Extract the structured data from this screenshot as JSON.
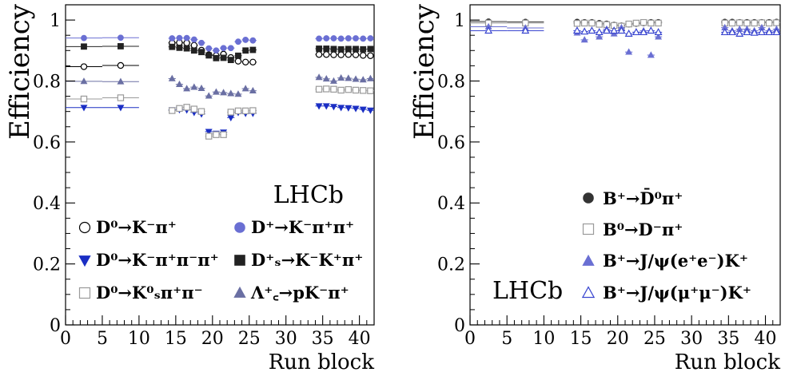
{
  "chart_data": [
    {
      "type": "scatter",
      "panel": "left",
      "xlabel": "Run block",
      "ylabel": "Efficiency",
      "xlim": [
        0,
        42
      ],
      "ylim": [
        0,
        1.05
      ],
      "xticks": [
        0,
        5,
        10,
        15,
        20,
        25,
        30,
        35,
        40
      ],
      "yticks": [
        0,
        0.2,
        0.4,
        0.6,
        0.8,
        1
      ],
      "ytick_labels": [
        "0",
        "0.2",
        "0.4",
        "0.6",
        "0.8",
        "1"
      ],
      "watermark": "LHCb",
      "legend_position": "bottom",
      "series": [
        {
          "name": "D⁰→K⁻π⁺",
          "marker": "open-circle",
          "color": "#000000",
          "x": [
            2.5,
            7.5,
            14.5,
            15.5,
            16.5,
            17.5,
            18.5,
            19.5,
            20.5,
            21.5,
            22.5,
            23.5,
            24.5,
            25.5,
            34.5,
            35.5,
            36.5,
            37.5,
            38.5,
            39.5,
            40.5,
            41.5
          ],
          "y": [
            0.847,
            0.851,
            0.925,
            0.926,
            0.925,
            0.917,
            0.901,
            0.886,
            0.883,
            0.888,
            0.877,
            0.865,
            0.862,
            0.862,
            0.887,
            0.887,
            0.886,
            0.886,
            0.887,
            0.886,
            0.884,
            0.883
          ]
        },
        {
          "name": "D⁺→K⁻π⁺π⁺",
          "marker": "filled-circle",
          "color": "#6a6fd3",
          "x": [
            2.5,
            7.5,
            14.5,
            15.5,
            16.5,
            17.5,
            18.5,
            19.5,
            20.5,
            21.5,
            22.5,
            23.5,
            24.5,
            25.5,
            34.5,
            35.5,
            36.5,
            37.5,
            38.5,
            39.5,
            40.5,
            41.5
          ],
          "y": [
            0.941,
            0.942,
            0.94,
            0.941,
            0.941,
            0.936,
            0.925,
            0.907,
            0.9,
            0.908,
            0.908,
            0.929,
            0.935,
            0.933,
            0.939,
            0.94,
            0.94,
            0.939,
            0.94,
            0.94,
            0.939,
            0.94
          ]
        },
        {
          "name": "D⁰→K⁻π⁺π⁻π⁺",
          "marker": "filled-triangle-down",
          "color": "#1a2ec4",
          "x": [
            2.5,
            7.5,
            14.5,
            15.5,
            16.5,
            17.5,
            18.5,
            19.5,
            20.5,
            21.5,
            22.5,
            23.5,
            24.5,
            25.5,
            34.5,
            35.5,
            36.5,
            37.5,
            38.5,
            39.5,
            40.5,
            41.5
          ],
          "y": [
            0.713,
            0.713,
            0.705,
            0.706,
            0.705,
            0.697,
            0.692,
            0.634,
            0.628,
            0.632,
            0.68,
            0.697,
            0.694,
            0.694,
            0.718,
            0.718,
            0.716,
            0.713,
            0.712,
            0.71,
            0.707,
            0.704
          ]
        },
        {
          "name": "D⁺ₛ→K⁻K⁺π⁺",
          "marker": "filled-square",
          "color": "#222222",
          "x": [
            2.5,
            7.5,
            14.5,
            15.5,
            16.5,
            17.5,
            18.5,
            19.5,
            20.5,
            21.5,
            22.5,
            23.5,
            24.5,
            25.5,
            34.5,
            35.5,
            36.5,
            37.5,
            38.5,
            39.5,
            40.5,
            41.5
          ],
          "y": [
            0.913,
            0.914,
            0.912,
            0.909,
            0.907,
            0.9,
            0.895,
            0.884,
            0.875,
            0.876,
            0.869,
            0.883,
            0.9,
            0.902,
            0.906,
            0.906,
            0.905,
            0.904,
            0.905,
            0.905,
            0.904,
            0.905
          ]
        },
        {
          "name": "D⁰→K⁰ₛπ⁺π⁻",
          "marker": "open-square",
          "color": "#9a9a9a",
          "x": [
            2.5,
            7.5,
            14.5,
            15.5,
            16.5,
            17.5,
            18.5,
            19.5,
            20.5,
            21.5,
            22.5,
            23.5,
            24.5,
            25.5,
            34.5,
            35.5,
            36.5,
            37.5,
            38.5,
            39.5,
            40.5,
            41.5
          ],
          "y": [
            0.741,
            0.745,
            0.703,
            0.71,
            0.714,
            0.708,
            0.7,
            0.619,
            0.624,
            0.624,
            0.698,
            0.702,
            0.702,
            0.703,
            0.773,
            0.774,
            0.773,
            0.77,
            0.772,
            0.77,
            0.769,
            0.768
          ]
        },
        {
          "name": "Λ⁺꜀→pK⁻π⁺",
          "marker": "filled-triangle-up",
          "color": "#6a6fa3",
          "x": [
            2.5,
            7.5,
            14.5,
            15.5,
            16.5,
            17.5,
            18.5,
            19.5,
            20.5,
            21.5,
            22.5,
            23.5,
            24.5,
            25.5,
            34.5,
            35.5,
            36.5,
            37.5,
            38.5,
            39.5,
            40.5,
            41.5
          ],
          "y": [
            0.799,
            0.798,
            0.808,
            0.789,
            0.775,
            0.78,
            0.776,
            0.751,
            0.764,
            0.762,
            0.759,
            0.757,
            0.775,
            0.768,
            0.812,
            0.807,
            0.8,
            0.81,
            0.809,
            0.806,
            0.804,
            0.808
          ]
        }
      ]
    },
    {
      "type": "scatter",
      "panel": "right",
      "xlabel": "Run block",
      "ylabel": "Efficiency",
      "xlim": [
        0,
        42
      ],
      "ylim": [
        0,
        1.05
      ],
      "xticks": [
        0,
        5,
        10,
        15,
        20,
        25,
        30,
        35,
        40
      ],
      "yticks": [
        0,
        0.2,
        0.4,
        0.6,
        0.8,
        1
      ],
      "ytick_labels": [
        "0",
        "0.2",
        "0.4",
        "0.6",
        "0.8",
        "1"
      ],
      "watermark": "LHCb",
      "legend_position": "bottom-right",
      "series": [
        {
          "name": "B⁺→D̄⁰π⁺",
          "marker": "filled-circle",
          "color": "#333333",
          "x": [
            2.5,
            7.5,
            14.5,
            15.5,
            16.5,
            17.5,
            18.5,
            19.5,
            20.5,
            21.5,
            22.5,
            23.5,
            24.5,
            25.5,
            34.5,
            35.5,
            36.5,
            37.5,
            38.5,
            39.5,
            40.5,
            41.5
          ],
          "y": [
            0.995,
            0.994,
            0.994,
            0.993,
            0.993,
            0.99,
            0.988,
            0.984,
            0.982,
            0.986,
            0.988,
            0.99,
            0.993,
            0.993,
            0.994,
            0.994,
            0.993,
            0.993,
            0.993,
            0.993,
            0.993,
            0.994
          ]
        },
        {
          "name": "B⁰→D⁻π⁺",
          "marker": "open-square",
          "color": "#9a9a9a",
          "x": [
            2.5,
            7.5,
            14.5,
            15.5,
            16.5,
            17.5,
            18.5,
            19.5,
            20.5,
            21.5,
            22.5,
            23.5,
            24.5,
            25.5,
            34.5,
            35.5,
            36.5,
            37.5,
            38.5,
            39.5,
            40.5,
            41.5
          ],
          "y": [
            0.99,
            0.99,
            0.989,
            0.99,
            0.99,
            0.986,
            0.985,
            0.982,
            0.98,
            0.987,
            0.99,
            0.992,
            0.99,
            0.99,
            0.99,
            0.99,
            0.991,
            0.99,
            0.99,
            0.991,
            0.99,
            0.991
          ]
        },
        {
          "name": "B⁺→J/ψ(e⁺e⁻)K⁺",
          "marker": "filled-triangle-up",
          "color": "#6a6fd3",
          "x": [
            2.5,
            7.5,
            14.5,
            15.5,
            16.5,
            17.5,
            18.5,
            19.5,
            20.5,
            21.5,
            22.5,
            23.5,
            24.5,
            25.5,
            34.5,
            35.5,
            36.5,
            37.5,
            38.5,
            39.5,
            40.5,
            41.5
          ],
          "y": [
            0.978,
            0.974,
            0.958,
            0.935,
            0.965,
            0.945,
            0.97,
            0.955,
            0.975,
            0.895,
            0.96,
            0.965,
            0.885,
            0.945,
            0.975,
            0.965,
            0.97,
            0.97,
            0.965,
            0.975,
            0.965,
            0.97
          ]
        },
        {
          "name": "B⁺→J/ψ(μ⁺μ⁻)K⁺",
          "marker": "open-triangle-up",
          "color": "#3a46d0",
          "x": [
            2.5,
            7.5,
            14.5,
            15.5,
            16.5,
            17.5,
            18.5,
            19.5,
            20.5,
            21.5,
            22.5,
            23.5,
            24.5,
            25.5,
            34.5,
            35.5,
            36.5,
            37.5,
            38.5,
            39.5,
            40.5,
            41.5
          ],
          "y": [
            0.965,
            0.965,
            0.965,
            0.962,
            0.965,
            0.96,
            0.965,
            0.965,
            0.965,
            0.955,
            0.96,
            0.96,
            0.965,
            0.96,
            0.96,
            0.96,
            0.955,
            0.96,
            0.958,
            0.96,
            0.96,
            0.96
          ]
        }
      ]
    }
  ],
  "legend_left": {
    "entries": [
      {
        "label": "D⁰→K⁻π⁺"
      },
      {
        "label": "D⁺→K⁻π⁺π⁺"
      },
      {
        "label": "D⁰→K⁻π⁺π⁻π⁺"
      },
      {
        "label": "D⁺ₛ→K⁻K⁺π⁺"
      },
      {
        "label": "D⁰→K⁰ₛπ⁺π⁻"
      },
      {
        "label": "Λ⁺꜀→pK⁻π⁺"
      }
    ]
  },
  "legend_right": {
    "entries": [
      {
        "label": "B⁺→D̄⁰π⁺"
      },
      {
        "label": "B⁰→D⁻π⁺"
      },
      {
        "label": "B⁺→J/ψ(e⁺e⁻)K⁺"
      },
      {
        "label": "B⁺→J/ψ(μ⁺μ⁻)K⁺"
      }
    ]
  }
}
